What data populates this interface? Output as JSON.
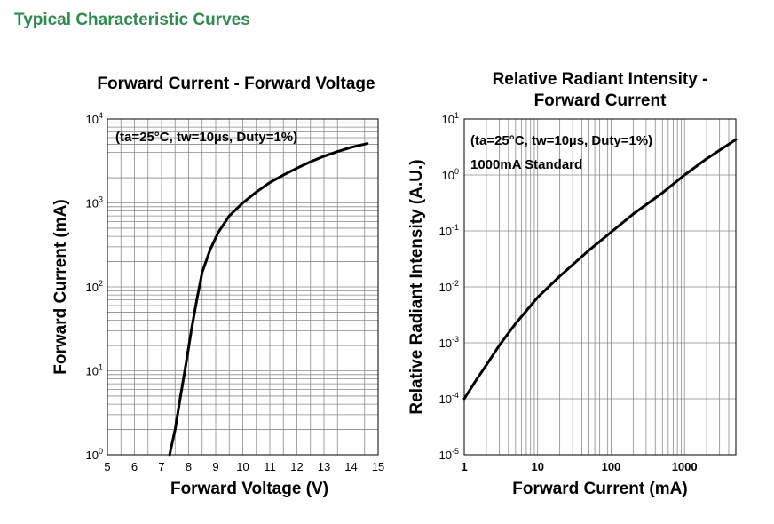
{
  "page": {
    "title": "Typical Characteristic Curves"
  },
  "chart_data": [
    {
      "type": "line",
      "title": "Forward Current - Forward Voltage",
      "xlabel": "Forward Voltage (V)",
      "ylabel": "Forward Current (mA)",
      "xlim": [
        5,
        15
      ],
      "ylim": [
        1,
        10000
      ],
      "yscale": "log",
      "grid": true,
      "annotation": "(ta=25°C, tw=10µs, Duty=1%)",
      "x_ticks": [
        "5",
        "6",
        "7",
        "8",
        "9",
        "10",
        "11",
        "12",
        "13",
        "14",
        "15"
      ],
      "y_ticks": [
        {
          "base": "10",
          "exp": "0"
        },
        {
          "base": "10",
          "exp": "1"
        },
        {
          "base": "10",
          "exp": "2"
        },
        {
          "base": "10",
          "exp": "3"
        },
        {
          "base": "10",
          "exp": "4"
        }
      ],
      "series": [
        {
          "x": [
            7.3,
            7.5,
            7.7,
            7.9,
            8.1,
            8.3,
            8.5,
            8.8,
            9.1,
            9.5,
            10.0,
            10.5,
            11.0,
            11.5,
            12.0,
            12.5,
            13.0,
            13.5,
            14.0,
            14.6
          ],
          "y": [
            1,
            2,
            5,
            12,
            30,
            70,
            150,
            280,
            450,
            700,
            1000,
            1350,
            1750,
            2150,
            2600,
            3100,
            3600,
            4100,
            4600,
            5100
          ]
        }
      ]
    },
    {
      "type": "line",
      "title": "Relative Radiant Intensity - Forward Current",
      "title_lines": [
        "Relative Radiant Intensity -",
        "Forward Current"
      ],
      "xlabel": "Forward Current (mA)",
      "ylabel": "Relative Radiant Intensity (A.U.)",
      "xlim": [
        1,
        5000
      ],
      "ylim": [
        1e-05,
        10
      ],
      "xscale": "log",
      "yscale": "log",
      "grid": true,
      "annotation": "(ta=25°C, tw=10µs, Duty=1%)",
      "annotation2": "1000mA Standard",
      "x_ticks": [
        "1",
        "10",
        "100",
        "1000"
      ],
      "y_ticks": [
        {
          "base": "10",
          "exp": "-5"
        },
        {
          "base": "10",
          "exp": "-4"
        },
        {
          "base": "10",
          "exp": "-3"
        },
        {
          "base": "10",
          "exp": "-2"
        },
        {
          "base": "10",
          "exp": "-1"
        },
        {
          "base": "10",
          "exp": "0"
        },
        {
          "base": "10",
          "exp": "1"
        }
      ],
      "series": [
        {
          "x": [
            1,
            1.5,
            2,
            3,
            5,
            10,
            20,
            50,
            100,
            200,
            500,
            1000,
            2000,
            5000
          ],
          "y": [
            0.0001,
            0.00023,
            0.0004,
            0.0009,
            0.0022,
            0.0065,
            0.0155,
            0.045,
            0.095,
            0.2,
            0.48,
            1.0,
            1.95,
            4.3
          ]
        }
      ]
    }
  ]
}
